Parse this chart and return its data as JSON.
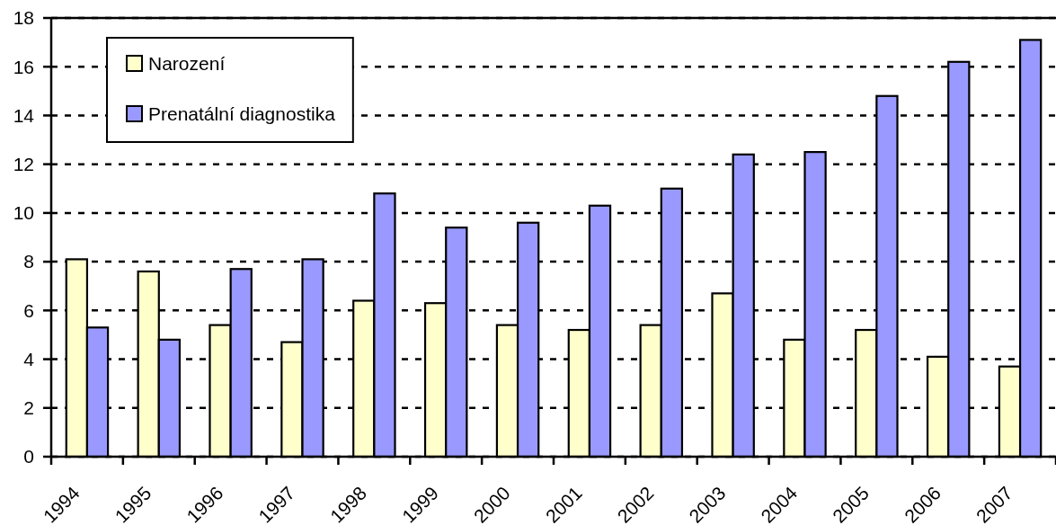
{
  "chart_data": {
    "type": "bar",
    "categories": [
      "1994",
      "1995",
      "1996",
      "1997",
      "1998",
      "1999",
      "2000",
      "2001",
      "2002",
      "2003",
      "2004",
      "2005",
      "2006",
      "2007"
    ],
    "series": [
      {
        "name": "Narození",
        "color": "#ffffcc",
        "values": [
          8.1,
          7.6,
          5.4,
          4.7,
          6.4,
          6.3,
          5.4,
          5.2,
          5.4,
          6.7,
          4.8,
          5.2,
          4.1,
          3.7
        ]
      },
      {
        "name": "Prenatální diagnostika",
        "color": "#9999ff",
        "values": [
          5.3,
          4.8,
          7.7,
          8.1,
          10.8,
          9.4,
          9.6,
          10.3,
          11.0,
          12.4,
          12.5,
          14.8,
          16.2,
          17.1
        ]
      }
    ],
    "ylim": [
      0,
      18
    ],
    "yticks": [
      0,
      2,
      4,
      6,
      8,
      10,
      12,
      14,
      16,
      18
    ],
    "grid": "y",
    "legend": "top left"
  }
}
